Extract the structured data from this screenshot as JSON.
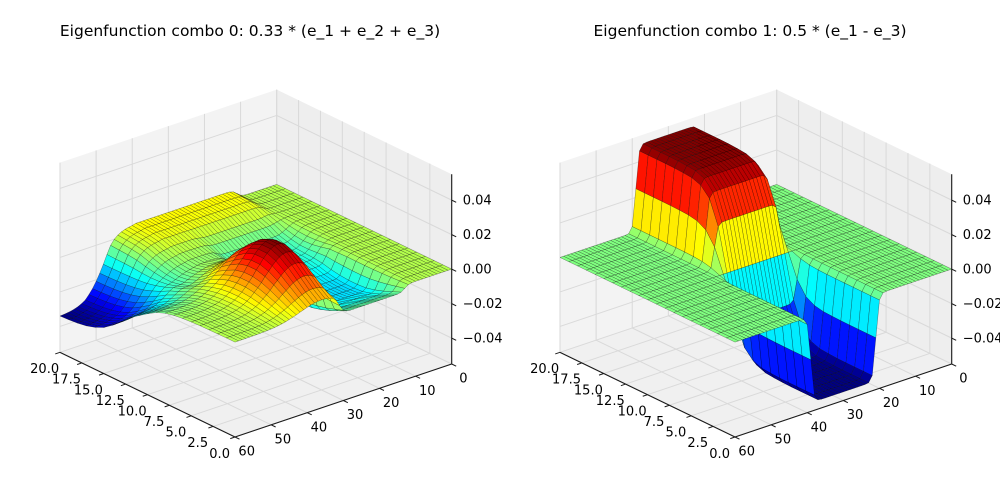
{
  "figure": {
    "background": "#ffffff"
  },
  "style": {
    "pane_floor": "#f0f0f0",
    "pane_wall_left": "#f3f3f3",
    "pane_wall_right": "#eeeeee",
    "grid_color": "#d9d9d9",
    "axis_color": "#1a1a1a",
    "tick_color": "#000000",
    "edge_color": "rgba(0,0,0,0.5)",
    "colormap": "jet"
  },
  "chart_data": [
    {
      "type": "surface3d",
      "title": "Eigenfunction combo 0: 0.33 * (e_1 + e_2 + e_3)",
      "xlim": [
        0,
        60
      ],
      "ylim": [
        0,
        20
      ],
      "zlim": [
        -0.055,
        0.055
      ],
      "x_ticks": {
        "values": [
          60,
          50,
          40,
          30,
          20,
          10,
          0
        ],
        "labels": [
          "60",
          "50",
          "40",
          "30",
          "20",
          "10",
          "0"
        ]
      },
      "y_ticks": {
        "values": [
          20,
          17.5,
          15,
          12.5,
          10,
          7.5,
          5,
          2.5,
          0
        ],
        "labels": [
          "20.0",
          "17.5",
          "15.0",
          "12.5",
          "10.0",
          "7.5",
          "5.0",
          "2.5",
          "0.0"
        ]
      },
      "z_ticks": {
        "values": [
          -0.04,
          -0.02,
          0,
          0.02,
          0.04
        ],
        "labels": [
          "−0.04",
          "−0.02",
          "0.00",
          "0.02",
          "0.04"
        ]
      },
      "grid": true,
      "colormap": "jet",
      "surface": {
        "note": "z(x,y) = sum over terms of bx[x] * gy[y]; x grid 0..60 step 1 (61 pts), y grid 0..20 step 1 (21 pts)",
        "x_range": [
          0,
          60
        ],
        "x_count": 61,
        "y_range": [
          0,
          20
        ],
        "y_count": 21,
        "z_data_min": -0.034,
        "z_data_max": 0.028,
        "terms": [
          {
            "name": "front-trough",
            "bx": [
              0,
              0,
              0,
              0,
              0,
              0,
              0,
              0,
              0,
              0,
              0.003,
              0.022,
              0.13,
              0.5,
              0.87,
              0.978,
              0.997,
              1,
              1,
              1,
              1,
              1,
              1,
              1,
              1,
              1,
              1,
              1,
              0.997,
              0.978,
              0.87,
              0.5,
              0.13,
              0.022,
              0.003,
              0,
              0,
              0,
              0,
              0,
              0,
              0,
              0,
              0,
              0,
              0,
              0,
              0,
              0,
              0,
              0,
              0,
              0,
              0,
              0,
              0,
              0,
              0,
              0,
              0,
              0
            ],
            "gy": [
              -0.004,
              -0.0065,
              -0.009,
              -0.011,
              -0.0125,
              -0.013,
              -0.013,
              -0.0125,
              -0.011,
              -0.009,
              -0.006,
              -0.004,
              -0.003,
              -0.002,
              -0.002,
              -0.001,
              -0.001,
              0,
              0,
              0,
              0
            ]
          },
          {
            "name": "mid-dip-and-back-plateau",
            "bx": [
              0,
              0,
              0,
              0,
              0,
              0,
              0,
              0.002,
              0.008,
              0.039,
              0.168,
              0.5,
              0.832,
              0.961,
              0.992,
              0.998,
              1,
              1,
              1,
              1,
              1,
              1,
              1,
              1,
              1,
              1,
              1,
              1,
              1,
              1,
              1,
              1,
              1,
              1,
              1,
              1,
              1,
              1,
              1,
              1,
              1,
              1,
              0.999,
              0.996,
              0.985,
              0.943,
              0.802,
              0.5,
              0.198,
              0.057,
              0.015,
              0.004,
              0.001,
              0,
              0,
              0,
              0,
              0,
              0,
              0,
              0
            ],
            "gy": [
              0,
              0,
              0,
              0,
              0,
              0,
              0,
              0,
              -0.0005,
              -0.001,
              -0.003,
              -0.0045,
              -0.005,
              -0.0045,
              -0.003,
              -0.001,
              0.001,
              0.003,
              0.004,
              0.0045,
              0.005
            ]
          },
          {
            "name": "ridge",
            "bx": [
              0,
              0,
              0,
              0,
              0,
              0,
              0,
              0,
              0,
              0,
              0,
              0,
              0,
              0,
              0,
              0,
              0,
              0,
              0,
              0,
              0,
              0,
              0,
              0,
              0,
              0,
              0,
              0,
              0,
              0.022,
              0.1,
              0.35,
              0.66,
              0.85,
              0.94,
              0.98,
              1,
              0.986,
              0.946,
              0.88,
              0.8,
              0.7,
              0.61,
              0.5,
              0.41,
              0.33,
              0.25,
              0.19,
              0.14,
              0.1,
              0.07,
              0.05,
              0.035,
              0.023,
              0.015,
              0.01,
              0.006,
              0.004,
              0.002,
              0.001,
              0
            ],
            "gy": [
              0.0076,
              0.0116,
              0.0165,
              0.0214,
              0.0254,
              0.0277,
              0.0277,
              0.0254,
              0.0214,
              0.0165,
              0.0116,
              0.0076,
              0.0046,
              0.0026,
              0.0014,
              0.0007,
              0.0003,
              0.0001,
              0,
              0,
              0
            ]
          },
          {
            "name": "back-left-tongue",
            "bx": [
              0,
              0,
              0,
              0,
              0,
              0,
              0,
              0,
              0,
              0,
              0,
              0,
              0,
              0,
              0,
              0,
              0,
              0,
              0,
              0,
              0,
              0,
              0,
              0,
              0,
              0,
              0,
              0,
              0,
              0,
              0,
              0,
              0,
              0,
              0,
              0,
              0,
              0,
              0,
              0,
              0.017,
              0.026,
              0.04,
              0.062,
              0.094,
              0.14,
              0.2,
              0.29,
              0.39,
              0.5,
              0.61,
              0.71,
              0.79,
              0.86,
              0.9,
              0.93,
              0.95,
              0.965,
              0.975,
              0.982,
              0.987
            ],
            "gy": [
              0,
              0,
              -0.0001,
              -0.0002,
              -0.0003,
              -0.0006,
              -0.001,
              -0.0017,
              -0.0029,
              -0.005,
              -0.0082,
              -0.0118,
              -0.0155,
              -0.0205,
              -0.0249,
              -0.0287,
              -0.0311,
              -0.0327,
              -0.0336,
              -0.0341,
              -0.0344
            ]
          }
        ]
      }
    },
    {
      "type": "surface3d",
      "title": "Eigenfunction combo 1: 0.5 * (e_1 - e_3)",
      "xlim": [
        0,
        60
      ],
      "ylim": [
        0,
        20
      ],
      "zlim": [
        -0.055,
        0.055
      ],
      "x_ticks": {
        "values": [
          60,
          50,
          40,
          30,
          20,
          10,
          0
        ],
        "labels": [
          "60",
          "50",
          "40",
          "30",
          "20",
          "10",
          "0"
        ]
      },
      "y_ticks": {
        "values": [
          20,
          17.5,
          15,
          12.5,
          10,
          7.5,
          5,
          2.5,
          0
        ],
        "labels": [
          "20.0",
          "17.5",
          "15.0",
          "12.5",
          "10.0",
          "7.5",
          "5.0",
          "2.5",
          "0.0"
        ]
      },
      "z_ticks": {
        "values": [
          -0.04,
          -0.02,
          0,
          0.02,
          0.04
        ],
        "labels": [
          "−0.04",
          "−0.02",
          "0.00",
          "0.02",
          "0.04"
        ]
      },
      "grid": true,
      "colormap": "jet",
      "surface": {
        "note": "z(x,y) = sum over terms of bx[x] * gy[y]; x grid 0..60 step 1 (61 pts), y grid 0..20 step 1 (21 pts)",
        "x_range": [
          0,
          60
        ],
        "x_count": 61,
        "y_range": [
          0,
          20
        ],
        "y_count": 21,
        "z_data_min": -0.05,
        "z_data_max": 0.05,
        "terms": [
          {
            "name": "band-sigmoid",
            "bx": [
              0,
              0,
              0,
              0,
              0,
              0,
              0,
              0,
              0,
              0,
              0,
              0,
              0,
              0,
              0,
              0,
              0,
              0,
              0.001,
              0.007,
              0.076,
              0.5,
              0.924,
              0.993,
              0.999,
              1,
              1,
              1,
              1,
              1,
              1,
              1,
              1,
              1,
              1,
              1,
              0.999,
              0.993,
              0.924,
              0.5,
              0.076,
              0.007,
              0.001,
              0,
              0,
              0,
              0,
              0,
              0,
              0,
              0,
              0,
              0,
              0,
              0,
              0,
              0,
              0,
              0,
              0,
              0
            ],
            "gy": [
              -0.05,
              -0.05,
              -0.05,
              -0.05,
              -0.0499,
              -0.0496,
              -0.0491,
              -0.0471,
              -0.0414,
              -0.0264,
              0,
              0.0264,
              0.0414,
              0.0471,
              0.0491,
              0.0496,
              0.0499,
              0.05,
              0.05,
              0.05,
              0.05
            ]
          }
        ]
      }
    }
  ]
}
